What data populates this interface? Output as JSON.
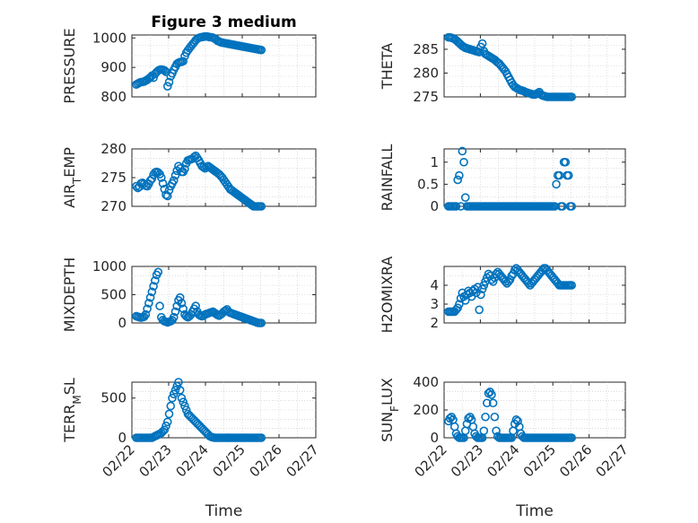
{
  "chart_data": [
    {
      "type": "scatter",
      "title": "Figure 3 medium",
      "ylabel": "PRESSURE",
      "ylim": [
        800,
        1010
      ],
      "yticks": [
        800,
        900,
        1000
      ],
      "xlim": [
        0,
        5
      ],
      "xticks": [],
      "grid": true,
      "x": [
        0.0,
        0.05,
        0.1,
        0.15,
        0.2,
        0.25,
        0.3,
        0.35,
        0.4,
        0.45,
        0.5,
        0.55,
        0.6,
        0.65,
        0.7,
        0.75,
        0.8,
        0.85,
        0.9,
        0.95,
        1.0,
        1.05,
        1.1,
        1.15,
        1.2,
        1.25,
        1.3,
        1.35,
        1.4,
        1.45,
        1.5,
        1.55,
        1.6,
        1.65,
        1.7,
        1.75,
        1.8,
        1.85,
        1.9,
        1.95,
        2.0,
        2.05,
        2.1,
        2.15,
        2.2,
        2.25,
        2.3,
        2.35,
        2.4,
        2.45,
        2.5,
        2.55,
        2.6,
        2.65,
        2.7,
        2.75,
        2.8,
        2.85,
        2.9,
        2.95,
        3.0,
        3.05,
        3.1,
        3.15,
        3.2,
        3.25,
        3.3,
        3.35,
        3.4,
        3.45,
        3.5,
        3.55,
        3.6,
        3.65,
        3.7,
        3.75,
        3.8,
        3.85,
        3.9,
        3.95,
        4.0
      ],
      "y": [
        842,
        845,
        848,
        850,
        851,
        852,
        855,
        858,
        862,
        866,
        872,
        865,
        878,
        884,
        889,
        892,
        893,
        892,
        890,
        885,
        836,
        850,
        870,
        880,
        892,
        902,
        912,
        916,
        918,
        919,
        921,
        938,
        950,
        958,
        965,
        972,
        979,
        985,
        992,
        997,
        1000,
        1002,
        1003,
        1004,
        1005,
        1005,
        1004,
        1003,
        1002,
        1001,
        998,
        995,
        990,
        988,
        985,
        984,
        983,
        982,
        981,
        980,
        979,
        978,
        977,
        976,
        975,
        974,
        973,
        972,
        971,
        970,
        969,
        968,
        967,
        966,
        965,
        964,
        963,
        962,
        961,
        960,
        959
      ]
    },
    {
      "type": "scatter",
      "ylabel": "THETA",
      "ylim": [
        275,
        288
      ],
      "yticks": [
        275,
        280,
        285
      ],
      "xlim": [
        0,
        5
      ],
      "grid": true,
      "x": [
        0.0,
        0.05,
        0.1,
        0.15,
        0.2,
        0.25,
        0.3,
        0.35,
        0.4,
        0.45,
        0.5,
        0.55,
        0.6,
        0.65,
        0.7,
        0.75,
        0.8,
        0.85,
        0.9,
        0.95,
        1.0,
        1.05,
        1.1,
        1.15,
        1.2,
        1.25,
        1.3,
        1.35,
        1.4,
        1.45,
        1.5,
        1.55,
        1.6,
        1.65,
        1.7,
        1.75,
        1.8,
        1.85,
        1.9,
        1.95,
        2.0,
        2.05,
        2.1,
        2.15,
        2.2,
        2.25,
        2.3,
        2.35,
        2.4,
        2.45,
        2.5,
        2.55,
        2.6,
        2.65,
        2.7,
        2.75,
        2.8,
        2.85,
        2.9,
        2.95,
        3.0,
        3.05,
        3.1,
        3.15,
        3.2,
        3.25,
        3.3,
        3.35,
        3.4,
        3.45,
        3.5,
        3.55,
        3.6,
        3.65,
        3.7,
        3.75,
        3.8,
        3.85,
        3.9,
        3.95,
        4.0
      ],
      "y": [
        287.5,
        287.5,
        287.4,
        287.3,
        287.1,
        286.9,
        286.6,
        286.3,
        286.0,
        285.7,
        285.5,
        285.3,
        285.2,
        285.1,
        285.0,
        284.9,
        284.8,
        284.7,
        284.6,
        284.5,
        284.4,
        285.5,
        286.2,
        284.6,
        284.0,
        283.8,
        283.6,
        283.4,
        283.2,
        283.0,
        282.8,
        282.5,
        282.2,
        282.0,
        281.6,
        281.2,
        280.8,
        280.4,
        279.8,
        279.2,
        278.6,
        278.0,
        277.5,
        277.1,
        276.9,
        276.7,
        276.5,
        276.4,
        276.3,
        276.2,
        276.0,
        275.9,
        275.8,
        275.7,
        275.6,
        275.5,
        275.5,
        275.6,
        275.8,
        276.0,
        275.5,
        275.3,
        275.2,
        275.1,
        275.0,
        275.0,
        275.0,
        275.0,
        275.0,
        275.0,
        275.0,
        275.0,
        275.0,
        275.0,
        275.0,
        275.0,
        275.0,
        275.0,
        275.0,
        275.0,
        275.0
      ]
    },
    {
      "type": "scatter",
      "ylabel": "AIR_TEMP",
      "ylim": [
        270,
        280
      ],
      "yticks": [
        270,
        275,
        280
      ],
      "xlim": [
        0,
        5
      ],
      "grid": true,
      "x": [
        0.0,
        0.05,
        0.1,
        0.15,
        0.2,
        0.25,
        0.3,
        0.35,
        0.4,
        0.45,
        0.5,
        0.55,
        0.6,
        0.65,
        0.7,
        0.75,
        0.8,
        0.85,
        0.9,
        0.95,
        1.0,
        1.05,
        1.1,
        1.15,
        1.2,
        1.25,
        1.3,
        1.35,
        1.4,
        1.45,
        1.5,
        1.55,
        1.6,
        1.65,
        1.7,
        1.75,
        1.8,
        1.85,
        1.9,
        1.95,
        2.0,
        2.05,
        2.1,
        2.15,
        2.2,
        2.25,
        2.3,
        2.35,
        2.4,
        2.45,
        2.5,
        2.55,
        2.6,
        2.65,
        2.7,
        2.75,
        2.8,
        2.85,
        2.9,
        2.95,
        3.0,
        3.05,
        3.1,
        3.15,
        3.2,
        3.25,
        3.3,
        3.35,
        3.4,
        3.45,
        3.5,
        3.55,
        3.6,
        3.65,
        3.7,
        3.75,
        3.8,
        3.85,
        3.9,
        3.95,
        4.0
      ],
      "y": [
        273.5,
        273.2,
        273.4,
        274.0,
        274.1,
        273.9,
        273.6,
        273.5,
        273.9,
        274.5,
        274.8,
        275.5,
        275.9,
        276.0,
        275.9,
        275.6,
        275.0,
        274.0,
        273.0,
        272.0,
        271.8,
        272.8,
        273.5,
        274.0,
        274.5,
        275.4,
        276.2,
        277.0,
        276.6,
        276.0,
        276.0,
        276.5,
        277.5,
        278.0,
        278.1,
        278.2,
        278.3,
        278.6,
        278.8,
        278.4,
        278.0,
        277.5,
        277.0,
        276.8,
        276.6,
        276.9,
        277.0,
        276.8,
        276.6,
        276.4,
        276.2,
        276.0,
        275.8,
        275.6,
        275.3,
        275.0,
        274.6,
        274.2,
        273.8,
        273.4,
        273.0,
        272.8,
        272.6,
        272.4,
        272.2,
        272.0,
        271.8,
        271.6,
        271.4,
        271.2,
        271.0,
        270.8,
        270.6,
        270.4,
        270.2,
        270.0,
        270.0,
        270.0,
        270.0,
        270.0,
        270.0
      ]
    },
    {
      "type": "scatter",
      "ylabel": "RAINFALL",
      "ylim": [
        0,
        1.3
      ],
      "yticks": [
        0,
        0.5,
        1
      ],
      "xlim": [
        0,
        5
      ],
      "grid": true,
      "x": [
        0.0,
        0.05,
        0.1,
        0.15,
        0.2,
        0.25,
        0.3,
        0.35,
        0.4,
        0.45,
        0.5,
        0.55,
        0.6,
        0.65,
        0.7,
        0.75,
        0.8,
        0.85,
        0.9,
        0.95,
        1.0,
        1.05,
        1.1,
        1.15,
        1.2,
        1.25,
        1.3,
        1.35,
        1.4,
        1.45,
        1.5,
        1.55,
        1.6,
        1.65,
        1.7,
        1.75,
        1.8,
        1.85,
        1.9,
        1.95,
        2.0,
        2.05,
        2.1,
        2.15,
        2.2,
        2.25,
        2.3,
        2.35,
        2.4,
        2.45,
        2.5,
        2.55,
        2.6,
        2.65,
        2.7,
        2.75,
        2.8,
        2.85,
        2.9,
        2.95,
        3.0,
        3.05,
        3.1,
        3.15,
        3.2,
        3.25,
        3.3,
        3.35,
        3.4,
        3.45,
        3.5,
        3.55,
        3.6,
        3.65,
        3.7,
        3.75,
        3.8,
        3.85,
        3.9,
        3.95,
        4.0
      ],
      "y": [
        0,
        0,
        0,
        0,
        0,
        0,
        0.6,
        0.7,
        0,
        1.25,
        1.0,
        0.2,
        0,
        0,
        0,
        0,
        0,
        0,
        0,
        0,
        0,
        0,
        0,
        0,
        0,
        0,
        0,
        0,
        0,
        0,
        0,
        0,
        0,
        0,
        0,
        0,
        0,
        0,
        0,
        0,
        0,
        0,
        0,
        0,
        0,
        0,
        0,
        0,
        0,
        0,
        0,
        0,
        0,
        0,
        0,
        0,
        0,
        0,
        0,
        0,
        0,
        0,
        0,
        0,
        0,
        0,
        0,
        0,
        0,
        0,
        0.5,
        0.7,
        0.7,
        0,
        0,
        1.0,
        1.0,
        0.7,
        0.7,
        0,
        0
      ]
    },
    {
      "type": "scatter",
      "ylabel": "MIXDEPTH",
      "ylim": [
        0,
        1000
      ],
      "yticks": [
        0,
        500,
        1000
      ],
      "xlim": [
        0,
        5
      ],
      "grid": true,
      "x": [
        0.0,
        0.05,
        0.1,
        0.15,
        0.2,
        0.25,
        0.3,
        0.35,
        0.4,
        0.45,
        0.5,
        0.55,
        0.6,
        0.65,
        0.7,
        0.75,
        0.8,
        0.85,
        0.9,
        0.95,
        1.0,
        1.05,
        1.1,
        1.15,
        1.2,
        1.25,
        1.3,
        1.35,
        1.4,
        1.45,
        1.5,
        1.55,
        1.6,
        1.65,
        1.7,
        1.75,
        1.8,
        1.85,
        1.9,
        1.95,
        2.0,
        2.05,
        2.1,
        2.15,
        2.2,
        2.25,
        2.3,
        2.35,
        2.4,
        2.45,
        2.5,
        2.55,
        2.6,
        2.65,
        2.7,
        2.75,
        2.8,
        2.85,
        2.9,
        2.95,
        3.0,
        3.05,
        3.1,
        3.15,
        3.2,
        3.25,
        3.3,
        3.35,
        3.4,
        3.45,
        3.5,
        3.55,
        3.6,
        3.65,
        3.7,
        3.75,
        3.8,
        3.85,
        3.9,
        3.95,
        4.0
      ],
      "y": [
        120,
        110,
        100,
        95,
        100,
        110,
        150,
        250,
        350,
        450,
        550,
        650,
        750,
        850,
        900,
        300,
        100,
        50,
        30,
        20,
        10,
        20,
        30,
        50,
        100,
        200,
        300,
        400,
        450,
        350,
        250,
        150,
        120,
        100,
        120,
        150,
        200,
        250,
        300,
        200,
        150,
        130,
        120,
        130,
        150,
        160,
        170,
        180,
        190,
        200,
        180,
        160,
        140,
        130,
        150,
        170,
        200,
        220,
        240,
        200,
        180,
        170,
        160,
        150,
        140,
        130,
        120,
        110,
        100,
        90,
        80,
        70,
        60,
        50,
        40,
        30,
        20,
        10,
        0,
        0,
        0
      ]
    },
    {
      "type": "scatter",
      "ylabel": "H2OMIXRA",
      "ylim": [
        2,
        5
      ],
      "yticks": [
        2,
        3,
        4
      ],
      "xlim": [
        0,
        5
      ],
      "grid": true,
      "x": [
        0.0,
        0.05,
        0.1,
        0.15,
        0.2,
        0.25,
        0.3,
        0.35,
        0.4,
        0.45,
        0.5,
        0.55,
        0.6,
        0.65,
        0.7,
        0.75,
        0.8,
        0.85,
        0.9,
        0.95,
        1.0,
        1.05,
        1.1,
        1.15,
        1.2,
        1.25,
        1.3,
        1.35,
        1.4,
        1.45,
        1.5,
        1.55,
        1.6,
        1.65,
        1.7,
        1.75,
        1.8,
        1.85,
        1.9,
        1.95,
        2.0,
        2.05,
        2.1,
        2.15,
        2.2,
        2.25,
        2.3,
        2.35,
        2.4,
        2.45,
        2.5,
        2.55,
        2.6,
        2.65,
        2.7,
        2.75,
        2.8,
        2.85,
        2.9,
        2.95,
        3.0,
        3.05,
        3.1,
        3.15,
        3.2,
        3.25,
        3.3,
        3.35,
        3.4,
        3.45,
        3.5,
        3.55,
        3.6,
        3.65,
        3.7,
        3.75,
        3.8,
        3.85,
        3.9,
        3.95,
        4.0
      ],
      "y": [
        2.6,
        2.6,
        2.6,
        2.6,
        2.6,
        2.7,
        2.8,
        3.0,
        3.3,
        3.6,
        3.4,
        3.2,
        3.5,
        3.7,
        3.6,
        3.4,
        3.7,
        3.8,
        3.6,
        3.9,
        2.7,
        3.5,
        3.8,
        4.0,
        4.2,
        4.4,
        4.6,
        4.5,
        4.3,
        4.2,
        4.4,
        4.6,
        4.7,
        4.6,
        4.5,
        4.4,
        4.3,
        4.2,
        4.1,
        4.2,
        4.3,
        4.5,
        4.6,
        4.8,
        4.9,
        4.8,
        4.7,
        4.6,
        4.5,
        4.4,
        4.3,
        4.2,
        4.1,
        4.0,
        4.1,
        4.2,
        4.3,
        4.4,
        4.5,
        4.6,
        4.7,
        4.8,
        4.9,
        4.9,
        4.8,
        4.7,
        4.6,
        4.5,
        4.4,
        4.3,
        4.2,
        4.1,
        4.0,
        4.0,
        4.0,
        4.0,
        4.0,
        4.0,
        4.0,
        4.0,
        4.0
      ]
    },
    {
      "type": "scatter",
      "ylabel": "TERR_MSL",
      "ylim": [
        0,
        700
      ],
      "yticks": [
        0,
        500
      ],
      "xlim": [
        0,
        5
      ],
      "xticks": [
        "02/22",
        "02/23",
        "02/24",
        "02/25",
        "02/26",
        "02/27"
      ],
      "xlabel": "Time",
      "grid": true,
      "x": [
        0.0,
        0.05,
        0.1,
        0.15,
        0.2,
        0.25,
        0.3,
        0.35,
        0.4,
        0.45,
        0.5,
        0.55,
        0.6,
        0.65,
        0.7,
        0.75,
        0.8,
        0.85,
        0.9,
        0.95,
        1.0,
        1.05,
        1.1,
        1.15,
        1.2,
        1.25,
        1.3,
        1.35,
        1.4,
        1.45,
        1.5,
        1.55,
        1.6,
        1.65,
        1.7,
        1.75,
        1.8,
        1.85,
        1.9,
        1.95,
        2.0,
        2.05,
        2.1,
        2.15,
        2.2,
        2.25,
        2.3,
        2.35,
        2.4,
        2.45,
        2.5,
        2.55,
        2.6,
        2.65,
        2.7,
        2.75,
        2.8,
        2.85,
        2.9,
        2.95,
        3.0,
        3.05,
        3.1,
        3.15,
        3.2,
        3.25,
        3.3,
        3.35,
        3.4,
        3.45,
        3.5,
        3.55,
        3.6,
        3.65,
        3.7,
        3.75,
        3.8,
        3.85,
        3.9,
        3.95,
        4.0
      ],
      "y": [
        0,
        0,
        0,
        0,
        0,
        0,
        0,
        0,
        0,
        0,
        0,
        10,
        20,
        30,
        40,
        50,
        60,
        80,
        100,
        150,
        200,
        300,
        400,
        500,
        550,
        600,
        650,
        700,
        600,
        500,
        450,
        400,
        350,
        300,
        280,
        260,
        240,
        220,
        200,
        180,
        160,
        140,
        120,
        100,
        80,
        60,
        40,
        20,
        10,
        5,
        0,
        0,
        0,
        0,
        0,
        0,
        0,
        0,
        0,
        0,
        0,
        0,
        0,
        0,
        0,
        0,
        0,
        0,
        0,
        0,
        0,
        0,
        0,
        0,
        0,
        0,
        0,
        0,
        0,
        0,
        0
      ]
    },
    {
      "type": "scatter",
      "ylabel": "SUN_FLUX",
      "ylim": [
        0,
        400
      ],
      "yticks": [
        0,
        200,
        400
      ],
      "xlim": [
        0,
        5
      ],
      "xticks": [
        "02/22",
        "02/23",
        "02/24",
        "02/25",
        "02/26",
        "02/27"
      ],
      "xlabel": "Time",
      "grid": true,
      "x": [
        0.0,
        0.05,
        0.1,
        0.15,
        0.2,
        0.25,
        0.3,
        0.35,
        0.4,
        0.45,
        0.5,
        0.55,
        0.6,
        0.65,
        0.7,
        0.75,
        0.8,
        0.85,
        0.9,
        0.95,
        1.0,
        1.05,
        1.1,
        1.15,
        1.2,
        1.25,
        1.3,
        1.35,
        1.4,
        1.45,
        1.5,
        1.55,
        1.6,
        1.65,
        1.7,
        1.75,
        1.8,
        1.85,
        1.9,
        1.95,
        2.0,
        2.05,
        2.1,
        2.15,
        2.2,
        2.25,
        2.3,
        2.35,
        2.4,
        2.45,
        2.5,
        2.55,
        2.6,
        2.65,
        2.7,
        2.75,
        2.8,
        2.85,
        2.9,
        2.95,
        3.0,
        3.05,
        3.1,
        3.15,
        3.2,
        3.25,
        3.3,
        3.35,
        3.4,
        3.45,
        3.5,
        3.55,
        3.6,
        3.65,
        3.7,
        3.75,
        3.8,
        3.85,
        3.9,
        3.95,
        4.0
      ],
      "y": [
        120,
        140,
        150,
        130,
        80,
        30,
        10,
        0,
        0,
        0,
        0,
        50,
        100,
        140,
        150,
        130,
        80,
        30,
        10,
        0,
        0,
        0,
        0,
        50,
        150,
        250,
        320,
        330,
        310,
        250,
        150,
        50,
        10,
        0,
        0,
        0,
        0,
        0,
        0,
        0,
        0,
        0,
        50,
        100,
        130,
        120,
        80,
        30,
        10,
        0,
        0,
        0,
        0,
        0,
        0,
        0,
        0,
        0,
        0,
        0,
        0,
        0,
        0,
        0,
        0,
        0,
        0,
        0,
        0,
        0,
        0,
        0,
        0,
        0,
        0,
        0,
        0,
        0,
        0,
        0,
        0
      ]
    }
  ],
  "colors": {
    "marker": "#0072bd",
    "axis": "#262626"
  }
}
